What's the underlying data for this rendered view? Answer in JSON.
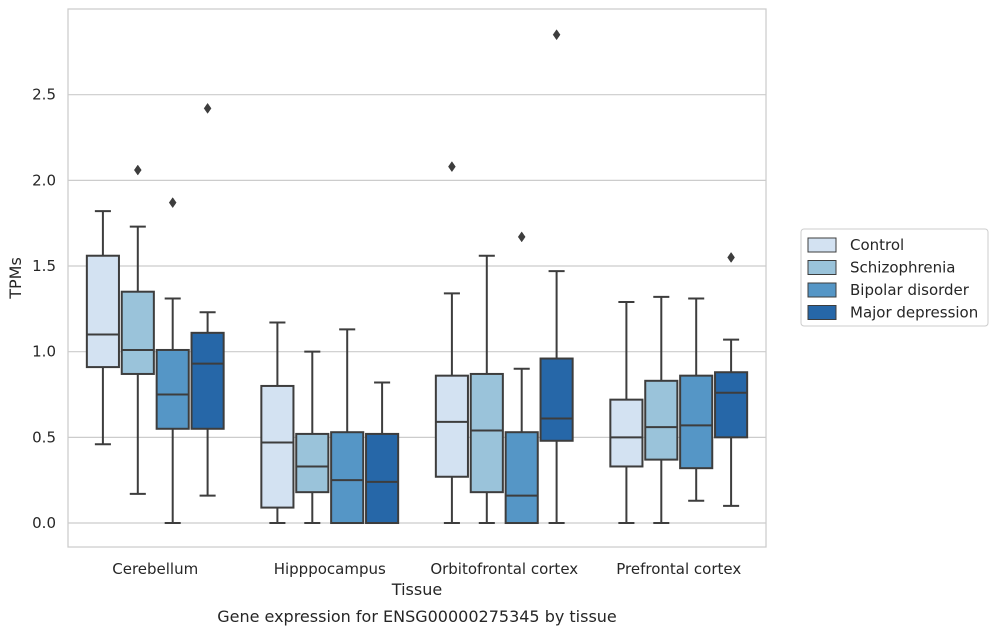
{
  "chart_data": {
    "type": "boxplot",
    "title": "Gene expression for ENSG00000275345 by tissue",
    "xlabel": "Tissue",
    "ylabel": "TPMs",
    "ylim": [
      -0.14,
      3.0
    ],
    "yticks": [
      0.0,
      0.5,
      1.0,
      1.5,
      2.0,
      2.5
    ],
    "ytick_labels": [
      "0.0",
      "0.5",
      "1.0",
      "1.5",
      "2.0",
      "2.5"
    ],
    "grid": true,
    "legend_position": "right",
    "categories": [
      "Cerebellum",
      "Hipppocampus",
      "Orbitofrontal cortex",
      "Prefrontal cortex"
    ],
    "series": [
      {
        "name": "Control",
        "color": "#d3e2f2",
        "boxes": [
          {
            "whislo": 0.46,
            "q1": 0.91,
            "med": 1.1,
            "q3": 1.56,
            "whishi": 1.82,
            "fliers": []
          },
          {
            "whislo": 0.0,
            "q1": 0.09,
            "med": 0.47,
            "q3": 0.8,
            "whishi": 1.17,
            "fliers": []
          },
          {
            "whislo": 0.0,
            "q1": 0.27,
            "med": 0.59,
            "q3": 0.86,
            "whishi": 1.34,
            "fliers": [
              2.08
            ]
          },
          {
            "whislo": 0.0,
            "q1": 0.33,
            "med": 0.5,
            "q3": 0.72,
            "whishi": 1.29,
            "fliers": []
          }
        ]
      },
      {
        "name": "Schizophrenia",
        "color": "#9ac3da",
        "boxes": [
          {
            "whislo": 0.17,
            "q1": 0.87,
            "med": 1.01,
            "q3": 1.35,
            "whishi": 1.73,
            "fliers": [
              2.06
            ]
          },
          {
            "whislo": 0.0,
            "q1": 0.18,
            "med": 0.33,
            "q3": 0.52,
            "whishi": 1.0,
            "fliers": []
          },
          {
            "whislo": 0.0,
            "q1": 0.18,
            "med": 0.54,
            "q3": 0.87,
            "whishi": 1.56,
            "fliers": []
          },
          {
            "whislo": 0.0,
            "q1": 0.37,
            "med": 0.56,
            "q3": 0.83,
            "whishi": 1.32,
            "fliers": []
          }
        ]
      },
      {
        "name": "Bipolar disorder",
        "color": "#5596c6",
        "boxes": [
          {
            "whislo": 0.0,
            "q1": 0.55,
            "med": 0.75,
            "q3": 1.01,
            "whishi": 1.31,
            "fliers": [
              1.87
            ]
          },
          {
            "whislo": 0.0,
            "q1": 0.0,
            "med": 0.25,
            "q3": 0.53,
            "whishi": 1.13,
            "fliers": []
          },
          {
            "whislo": 0.0,
            "q1": 0.0,
            "med": 0.16,
            "q3": 0.53,
            "whishi": 0.9,
            "fliers": [
              1.67
            ]
          },
          {
            "whislo": 0.13,
            "q1": 0.32,
            "med": 0.57,
            "q3": 0.86,
            "whishi": 1.31,
            "fliers": []
          }
        ]
      },
      {
        "name": "Major depression",
        "color": "#2667a8",
        "boxes": [
          {
            "whislo": 0.16,
            "q1": 0.55,
            "med": 0.93,
            "q3": 1.11,
            "whishi": 1.23,
            "fliers": [
              2.42
            ]
          },
          {
            "whislo": 0.0,
            "q1": 0.0,
            "med": 0.24,
            "q3": 0.52,
            "whishi": 0.82,
            "fliers": []
          },
          {
            "whislo": 0.0,
            "q1": 0.48,
            "med": 0.61,
            "q3": 0.96,
            "whishi": 1.47,
            "fliers": [
              2.85
            ]
          },
          {
            "whislo": 0.1,
            "q1": 0.5,
            "med": 0.76,
            "q3": 0.88,
            "whishi": 1.07,
            "fliers": [
              1.55
            ]
          }
        ]
      }
    ]
  }
}
